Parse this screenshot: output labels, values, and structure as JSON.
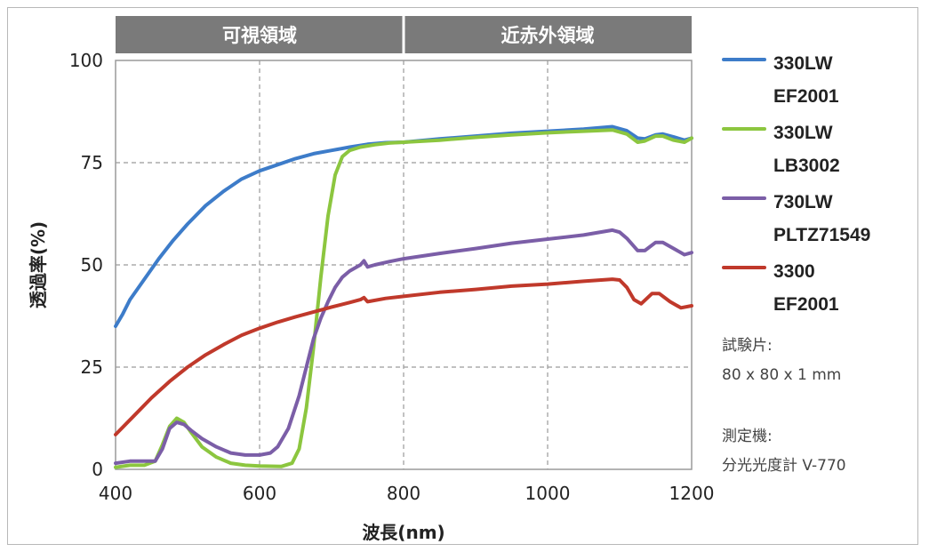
{
  "chart_data": {
    "type": "line",
    "xlabel": "波長(nm)",
    "ylabel": "透過率(%)",
    "xlim": [
      400,
      1200
    ],
    "ylim": [
      0,
      100
    ],
    "xticks": [
      400,
      600,
      800,
      1000,
      1200
    ],
    "yticks": [
      0,
      25,
      50,
      75,
      100
    ],
    "grid": "dashed",
    "legend_position": "right",
    "regions": [
      {
        "label": "可視領域",
        "range": [
          400,
          800
        ]
      },
      {
        "label": "近赤外領域",
        "range": [
          800,
          1200
        ]
      }
    ],
    "series": [
      {
        "name": "330LW",
        "name2": "EF2001",
        "color": "#3d7cc9",
        "points": [
          [
            400,
            35
          ],
          [
            410,
            38
          ],
          [
            420,
            41.5
          ],
          [
            430,
            44
          ],
          [
            440,
            46.5
          ],
          [
            450,
            49
          ],
          [
            460,
            51.5
          ],
          [
            480,
            56
          ],
          [
            500,
            60
          ],
          [
            525,
            64.5
          ],
          [
            550,
            68
          ],
          [
            575,
            71
          ],
          [
            600,
            73
          ],
          [
            625,
            74.5
          ],
          [
            650,
            76
          ],
          [
            675,
            77.2
          ],
          [
            700,
            78
          ],
          [
            725,
            78.8
          ],
          [
            750,
            79.5
          ],
          [
            775,
            79.9
          ],
          [
            800,
            80
          ],
          [
            850,
            80.8
          ],
          [
            900,
            81.5
          ],
          [
            950,
            82.2
          ],
          [
            1000,
            82.7
          ],
          [
            1050,
            83.2
          ],
          [
            1090,
            83.8
          ],
          [
            1110,
            82.8
          ],
          [
            1125,
            81
          ],
          [
            1135,
            80.8
          ],
          [
            1150,
            81.8
          ],
          [
            1160,
            82
          ],
          [
            1175,
            81.3
          ],
          [
            1190,
            80.5
          ],
          [
            1200,
            81
          ]
        ]
      },
      {
        "name": "330LW",
        "name2": "LB3002",
        "color": "#8cc63f",
        "points": [
          [
            400,
            0.5
          ],
          [
            420,
            1
          ],
          [
            440,
            1
          ],
          [
            455,
            2
          ],
          [
            465,
            6
          ],
          [
            475,
            10.5
          ],
          [
            485,
            12.5
          ],
          [
            495,
            11.5
          ],
          [
            505,
            9
          ],
          [
            520,
            5.5
          ],
          [
            540,
            3
          ],
          [
            560,
            1.5
          ],
          [
            580,
            1
          ],
          [
            600,
            0.8
          ],
          [
            630,
            0.7
          ],
          [
            645,
            1.5
          ],
          [
            655,
            5
          ],
          [
            665,
            15
          ],
          [
            675,
            30
          ],
          [
            685,
            47
          ],
          [
            695,
            62
          ],
          [
            705,
            72
          ],
          [
            715,
            76.5
          ],
          [
            725,
            78
          ],
          [
            740,
            78.8
          ],
          [
            760,
            79.4
          ],
          [
            780,
            79.8
          ],
          [
            800,
            80
          ],
          [
            850,
            80.5
          ],
          [
            900,
            81.2
          ],
          [
            950,
            81.8
          ],
          [
            1000,
            82.3
          ],
          [
            1050,
            82.7
          ],
          [
            1090,
            83
          ],
          [
            1110,
            82
          ],
          [
            1125,
            80
          ],
          [
            1135,
            80.3
          ],
          [
            1150,
            81.5
          ],
          [
            1160,
            81.5
          ],
          [
            1175,
            80.5
          ],
          [
            1190,
            80
          ],
          [
            1200,
            81
          ]
        ]
      },
      {
        "name": "730LW",
        "name2": "PLTZ71549",
        "color": "#7b5ea7",
        "points": [
          [
            400,
            1.5
          ],
          [
            420,
            2
          ],
          [
            440,
            2
          ],
          [
            455,
            2
          ],
          [
            465,
            5
          ],
          [
            475,
            10
          ],
          [
            485,
            11.5
          ],
          [
            495,
            11
          ],
          [
            505,
            9.5
          ],
          [
            520,
            7.5
          ],
          [
            540,
            5.5
          ],
          [
            560,
            4
          ],
          [
            580,
            3.5
          ],
          [
            600,
            3.5
          ],
          [
            615,
            4
          ],
          [
            625,
            5.5
          ],
          [
            640,
            10
          ],
          [
            655,
            18
          ],
          [
            665,
            25
          ],
          [
            675,
            32
          ],
          [
            685,
            37
          ],
          [
            695,
            41
          ],
          [
            705,
            44.5
          ],
          [
            715,
            47
          ],
          [
            725,
            48.5
          ],
          [
            740,
            50
          ],
          [
            745,
            51
          ],
          [
            750,
            49.5
          ],
          [
            760,
            50
          ],
          [
            780,
            50.8
          ],
          [
            800,
            51.5
          ],
          [
            850,
            52.8
          ],
          [
            900,
            54
          ],
          [
            950,
            55.3
          ],
          [
            1000,
            56.3
          ],
          [
            1050,
            57.3
          ],
          [
            1090,
            58.5
          ],
          [
            1100,
            58
          ],
          [
            1110,
            56.5
          ],
          [
            1125,
            53.5
          ],
          [
            1135,
            53.5
          ],
          [
            1150,
            55.5
          ],
          [
            1160,
            55.5
          ],
          [
            1175,
            54
          ],
          [
            1190,
            52.5
          ],
          [
            1200,
            53
          ]
        ]
      },
      {
        "name": "3300",
        "name2": "EF2001",
        "color": "#c0392b",
        "points": [
          [
            400,
            8.5
          ],
          [
            425,
            13
          ],
          [
            450,
            17.5
          ],
          [
            475,
            21.5
          ],
          [
            500,
            25
          ],
          [
            525,
            28
          ],
          [
            550,
            30.5
          ],
          [
            575,
            32.8
          ],
          [
            600,
            34.5
          ],
          [
            625,
            36
          ],
          [
            650,
            37.3
          ],
          [
            675,
            38.5
          ],
          [
            700,
            39.7
          ],
          [
            725,
            40.8
          ],
          [
            740,
            41.5
          ],
          [
            745,
            42
          ],
          [
            750,
            41
          ],
          [
            775,
            41.8
          ],
          [
            800,
            42.3
          ],
          [
            850,
            43.3
          ],
          [
            900,
            44
          ],
          [
            950,
            44.8
          ],
          [
            1000,
            45.3
          ],
          [
            1050,
            46
          ],
          [
            1090,
            46.5
          ],
          [
            1100,
            46.3
          ],
          [
            1110,
            44.5
          ],
          [
            1120,
            41.5
          ],
          [
            1130,
            40.5
          ],
          [
            1145,
            43
          ],
          [
            1155,
            43
          ],
          [
            1170,
            41
          ],
          [
            1185,
            39.5
          ],
          [
            1200,
            40
          ]
        ]
      }
    ]
  },
  "notes": {
    "specimen_label": "試験片:",
    "specimen_value": "80 x 80 x 1 mm",
    "instrument_label": "測定機:",
    "instrument_value": "分光光度計 V-770"
  }
}
